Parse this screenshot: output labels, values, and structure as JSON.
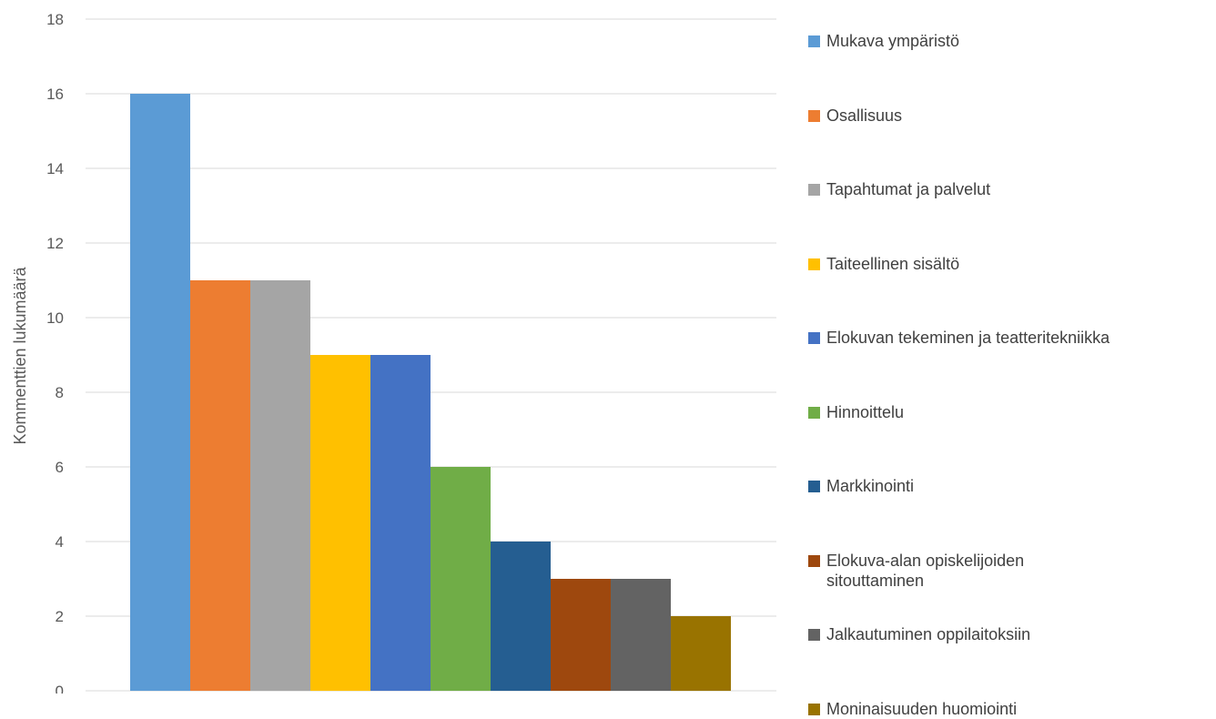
{
  "chart_data": {
    "type": "bar",
    "title": "",
    "xlabel": "",
    "ylabel": "Kommenttien lukumäärä",
    "ylim": [
      0,
      18
    ],
    "yticks": [
      0,
      2,
      4,
      6,
      8,
      10,
      12,
      14,
      16,
      18
    ],
    "grid": true,
    "legend_position": "right",
    "series": [
      {
        "name": "Mukava ympäristö",
        "value": 16,
        "color": "#5B9BD5"
      },
      {
        "name": "Osallisuus",
        "value": 11,
        "color": "#ED7D31"
      },
      {
        "name": "Tapahtumat ja palvelut",
        "value": 11,
        "color": "#A5A5A5"
      },
      {
        "name": "Taiteellinen sisältö",
        "value": 9,
        "color": "#FFC000"
      },
      {
        "name": "Elokuvan tekeminen ja teatteritekniikka",
        "value": 9,
        "color": "#4472C4"
      },
      {
        "name": "Hinnoittelu",
        "value": 6,
        "color": "#70AD47"
      },
      {
        "name": "Markkinointi",
        "value": 4,
        "color": "#255E91"
      },
      {
        "name": "Elokuva-alan opiskelijoiden sitouttaminen",
        "value": 3,
        "color": "#9E480E"
      },
      {
        "name": "Jalkautuminen oppilaitoksiin",
        "value": 3,
        "color": "#636363"
      },
      {
        "name": "Moninaisuuden huomiointi",
        "value": 2,
        "color": "#997300"
      }
    ]
  }
}
